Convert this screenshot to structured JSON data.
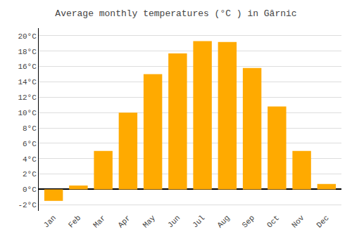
{
  "chart_data": {
    "type": "bar",
    "title": "Average monthly temperatures (°C ) in Gârnic",
    "categories": [
      "Jan",
      "Feb",
      "Mar",
      "Apr",
      "May",
      "Jun",
      "Jul",
      "Aug",
      "Sep",
      "Oct",
      "Nov",
      "Dec"
    ],
    "values": [
      -1.5,
      0.5,
      5.0,
      10.0,
      15.0,
      17.7,
      19.3,
      19.2,
      15.8,
      10.8,
      5.0,
      0.7
    ],
    "color": "#FFAA00",
    "ylim": [
      -2.8,
      21.0
    ],
    "yticks": [
      {
        "value": -2,
        "label": "-2°C"
      },
      {
        "value": 0,
        "label": "0°C"
      },
      {
        "value": 2,
        "label": "2°C"
      },
      {
        "value": 4,
        "label": "4°C"
      },
      {
        "value": 6,
        "label": "6°C"
      },
      {
        "value": 8,
        "label": "8°C"
      },
      {
        "value": 10,
        "label": "10°C"
      },
      {
        "value": 12,
        "label": "12°C"
      },
      {
        "value": 14,
        "label": "14°C"
      },
      {
        "value": 16,
        "label": "16°C"
      },
      {
        "value": 18,
        "label": "18°C"
      },
      {
        "value": 20,
        "label": "20°C"
      }
    ],
    "grid": true
  }
}
